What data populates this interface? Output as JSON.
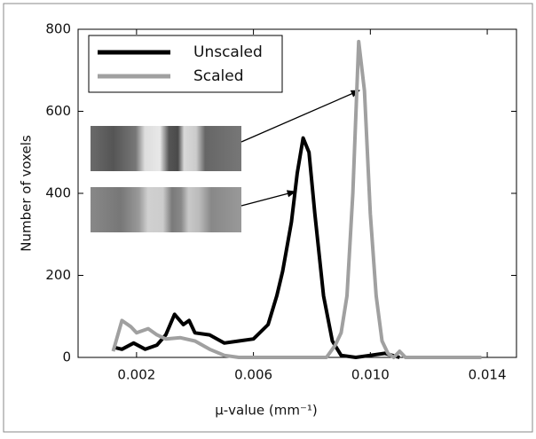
{
  "chart_data": {
    "type": "line",
    "xlabel": "μ-value (mm⁻¹)",
    "ylabel": "Number of voxels",
    "xlim": [
      0,
      0.015
    ],
    "ylim": [
      0,
      800
    ],
    "xticks": [
      0.002,
      0.006,
      {
        "value": 0.01,
        "label": "0.010"
      },
      0.014
    ],
    "yticks": [
      0,
      200,
      400,
      600,
      800
    ],
    "legend": "upper left",
    "series": [
      {
        "name": "Unscaled",
        "color": "#000000",
        "x": [
          0.0012,
          0.0015,
          0.0019,
          0.0023,
          0.0027,
          0.003,
          0.0033,
          0.0036,
          0.0038,
          0.004,
          0.0045,
          0.005,
          0.0055,
          0.006,
          0.0065,
          0.0068,
          0.007,
          0.0073,
          0.0075,
          0.0077,
          0.0079,
          0.0081,
          0.0084,
          0.0087,
          0.009,
          0.0095,
          0.01,
          0.0105,
          0.011
        ],
        "values": [
          25,
          20,
          35,
          20,
          30,
          55,
          105,
          80,
          90,
          60,
          55,
          35,
          40,
          45,
          80,
          150,
          210,
          330,
          450,
          535,
          500,
          350,
          150,
          40,
          5,
          0,
          5,
          10,
          0
        ]
      },
      {
        "name": "Scaled",
        "color": "#a0a0a0",
        "x": [
          0.0012,
          0.0015,
          0.0018,
          0.002,
          0.0024,
          0.0027,
          0.003,
          0.0035,
          0.004,
          0.0045,
          0.005,
          0.0055,
          0.0085,
          0.0088,
          0.009,
          0.0092,
          0.0094,
          0.0096,
          0.0098,
          0.01,
          0.0102,
          0.0104,
          0.0106,
          0.0108,
          0.011,
          0.0112,
          0.0138
        ],
        "values": [
          15,
          90,
          75,
          60,
          70,
          55,
          45,
          48,
          40,
          20,
          5,
          0,
          0,
          30,
          60,
          150,
          400,
          770,
          650,
          350,
          150,
          40,
          10,
          0,
          15,
          0,
          0
        ]
      }
    ]
  }
}
